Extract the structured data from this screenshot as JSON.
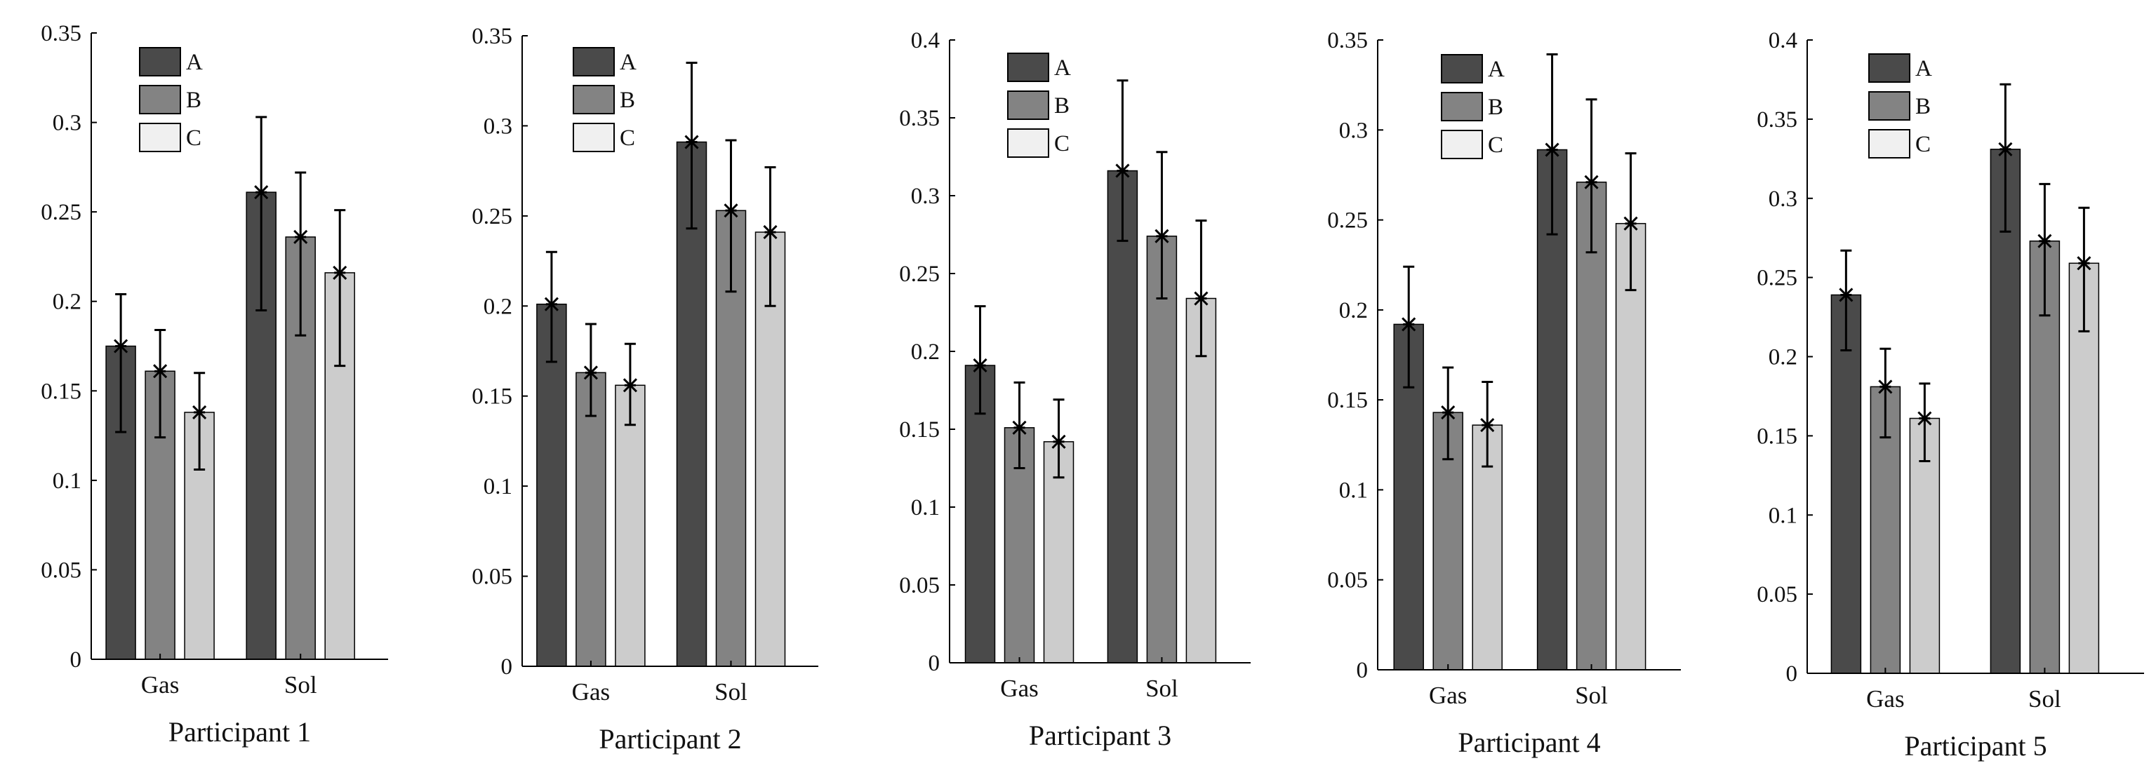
{
  "colors": {
    "A": "#4a4a4a",
    "B": "#838383",
    "C": "#cccccc",
    "legend_C": "#f0f0f0",
    "axis": "#000000",
    "error": "#000000"
  },
  "chart_data": [
    {
      "type": "bar",
      "title": "Participant 1",
      "categories": [
        "Gas",
        "Sol"
      ],
      "ylim": [
        0,
        0.35
      ],
      "yticks": [
        0,
        0.05,
        0.1,
        0.15,
        0.2,
        0.25,
        0.3,
        0.35
      ],
      "ytick_labels": [
        "0",
        "0.05",
        "0.1",
        "0.15",
        "0.2",
        "0.25",
        "0.3",
        "0.35"
      ],
      "legend": [
        "A",
        "B",
        "C"
      ],
      "legend_position": "top-left",
      "series": [
        {
          "name": "A",
          "values": [
            0.175,
            0.261
          ],
          "err_low": [
            0.127,
            0.195
          ],
          "err_high": [
            0.204,
            0.303
          ]
        },
        {
          "name": "B",
          "values": [
            0.161,
            0.236
          ],
          "err_low": [
            0.124,
            0.181
          ],
          "err_high": [
            0.184,
            0.272
          ]
        },
        {
          "name": "C",
          "values": [
            0.138,
            0.216
          ],
          "err_low": [
            0.106,
            0.164
          ],
          "err_high": [
            0.16,
            0.251
          ]
        }
      ]
    },
    {
      "type": "bar",
      "title": "Participant 2",
      "categories": [
        "Gas",
        "Sol"
      ],
      "ylim": [
        0,
        0.35
      ],
      "yticks": [
        0,
        0.05,
        0.1,
        0.15,
        0.2,
        0.25,
        0.3,
        0.35
      ],
      "ytick_labels": [
        "0",
        "0.05",
        "0.1",
        "0.15",
        "0.2",
        "0.25",
        "0.3",
        "0.35"
      ],
      "legend": [
        "A",
        "B",
        "C"
      ],
      "legend_position": "top-left",
      "series": [
        {
          "name": "A",
          "values": [
            0.201,
            0.291
          ],
          "err_low": [
            0.169,
            0.243
          ],
          "err_high": [
            0.23,
            0.335
          ]
        },
        {
          "name": "B",
          "values": [
            0.163,
            0.253
          ],
          "err_low": [
            0.139,
            0.208
          ],
          "err_high": [
            0.19,
            0.292
          ]
        },
        {
          "name": "C",
          "values": [
            0.156,
            0.241
          ],
          "err_low": [
            0.134,
            0.2
          ],
          "err_high": [
            0.179,
            0.277
          ]
        }
      ]
    },
    {
      "type": "bar",
      "title": "Participant 3",
      "categories": [
        "Gas",
        "Sol"
      ],
      "ylim": [
        0,
        0.4
      ],
      "yticks": [
        0,
        0.05,
        0.1,
        0.15,
        0.2,
        0.25,
        0.3,
        0.35,
        0.4
      ],
      "ytick_labels": [
        "0",
        "0.05",
        "0.1",
        "0.15",
        "0.2",
        "0.25",
        "0.3",
        "0.35",
        "0.4"
      ],
      "legend": [
        "A",
        "B",
        "C"
      ],
      "legend_position": "top-center",
      "series": [
        {
          "name": "A",
          "values": [
            0.191,
            0.316
          ],
          "err_low": [
            0.16,
            0.271
          ],
          "err_high": [
            0.229,
            0.374
          ]
        },
        {
          "name": "B",
          "values": [
            0.151,
            0.274
          ],
          "err_low": [
            0.125,
            0.234
          ],
          "err_high": [
            0.18,
            0.328
          ]
        },
        {
          "name": "C",
          "values": [
            0.142,
            0.234
          ],
          "err_low": [
            0.119,
            0.197
          ],
          "err_high": [
            0.169,
            0.284
          ]
        }
      ]
    },
    {
      "type": "bar",
      "title": "Participant 4",
      "categories": [
        "Gas",
        "Sol"
      ],
      "ylim": [
        0,
        0.35
      ],
      "yticks": [
        0,
        0.05,
        0.1,
        0.15,
        0.2,
        0.25,
        0.3,
        0.35
      ],
      "ytick_labels": [
        "0",
        "0.05",
        "0.1",
        "0.15",
        "0.2",
        "0.25",
        "0.3",
        "0.35"
      ],
      "legend": [
        "A",
        "B",
        "C"
      ],
      "legend_position": "top-center",
      "series": [
        {
          "name": "A",
          "values": [
            0.192,
            0.289
          ],
          "err_low": [
            0.157,
            0.242
          ],
          "err_high": [
            0.224,
            0.342
          ]
        },
        {
          "name": "B",
          "values": [
            0.143,
            0.271
          ],
          "err_low": [
            0.117,
            0.232
          ],
          "err_high": [
            0.168,
            0.317
          ]
        },
        {
          "name": "C",
          "values": [
            0.136,
            0.248
          ],
          "err_low": [
            0.113,
            0.211
          ],
          "err_high": [
            0.16,
            0.287
          ]
        }
      ]
    },
    {
      "type": "bar",
      "title": "Participant 5",
      "categories": [
        "Gas",
        "Sol"
      ],
      "ylim": [
        0,
        0.4
      ],
      "yticks": [
        0,
        0.05,
        0.1,
        0.15,
        0.2,
        0.25,
        0.3,
        0.35,
        0.4
      ],
      "ytick_labels": [
        "0",
        "0.05",
        "0.1",
        "0.15",
        "0.2",
        "0.25",
        "0.3",
        "0.35",
        "0.4"
      ],
      "legend": [
        "A",
        "B",
        "C"
      ],
      "legend_position": "top-left",
      "series": [
        {
          "name": "A",
          "values": [
            0.239,
            0.331
          ],
          "err_low": [
            0.204,
            0.279
          ],
          "err_high": [
            0.267,
            0.372
          ]
        },
        {
          "name": "B",
          "values": [
            0.181,
            0.273
          ],
          "err_low": [
            0.149,
            0.226
          ],
          "err_high": [
            0.205,
            0.309
          ]
        },
        {
          "name": "C",
          "values": [
            0.161,
            0.259
          ],
          "err_low": [
            0.134,
            0.216
          ],
          "err_high": [
            0.183,
            0.294
          ]
        }
      ]
    }
  ]
}
